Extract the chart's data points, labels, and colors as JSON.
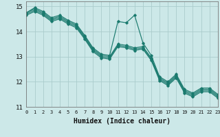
{
  "xlabel": "Humidex (Indice chaleur)",
  "background_color": "#cce8e8",
  "grid_color": "#aacccc",
  "line_color": "#1a7a6e",
  "xlim": [
    0,
    23
  ],
  "ylim": [
    11,
    15.2
  ],
  "yticks": [
    11,
    12,
    13,
    14,
    15
  ],
  "xticks": [
    0,
    1,
    2,
    3,
    4,
    5,
    6,
    7,
    8,
    9,
    10,
    11,
    12,
    13,
    14,
    15,
    16,
    17,
    18,
    19,
    20,
    21,
    22,
    23
  ],
  "series": [
    [
      14.75,
      14.95,
      14.8,
      14.55,
      14.65,
      14.45,
      14.3,
      13.85,
      13.35,
      13.1,
      13.05,
      14.4,
      14.35,
      14.65,
      13.55,
      13.05,
      12.2,
      12.0,
      12.3,
      11.7,
      11.55,
      11.75,
      11.75,
      11.5
    ],
    [
      14.75,
      14.9,
      14.75,
      14.5,
      14.6,
      14.4,
      14.25,
      13.8,
      13.3,
      13.05,
      13.0,
      13.5,
      13.45,
      13.35,
      13.4,
      12.95,
      12.15,
      11.95,
      12.25,
      11.65,
      11.5,
      11.7,
      11.7,
      11.45
    ],
    [
      14.7,
      14.85,
      14.7,
      14.45,
      14.55,
      14.35,
      14.2,
      13.75,
      13.25,
      13.0,
      12.95,
      13.45,
      13.4,
      13.3,
      13.35,
      12.9,
      12.1,
      11.9,
      12.2,
      11.6,
      11.45,
      11.65,
      11.65,
      11.4
    ],
    [
      14.65,
      14.8,
      14.65,
      14.4,
      14.5,
      14.3,
      14.15,
      13.7,
      13.2,
      12.95,
      12.9,
      13.4,
      13.35,
      13.25,
      13.3,
      12.85,
      12.05,
      11.85,
      12.15,
      11.55,
      11.4,
      11.6,
      11.6,
      11.35
    ]
  ]
}
